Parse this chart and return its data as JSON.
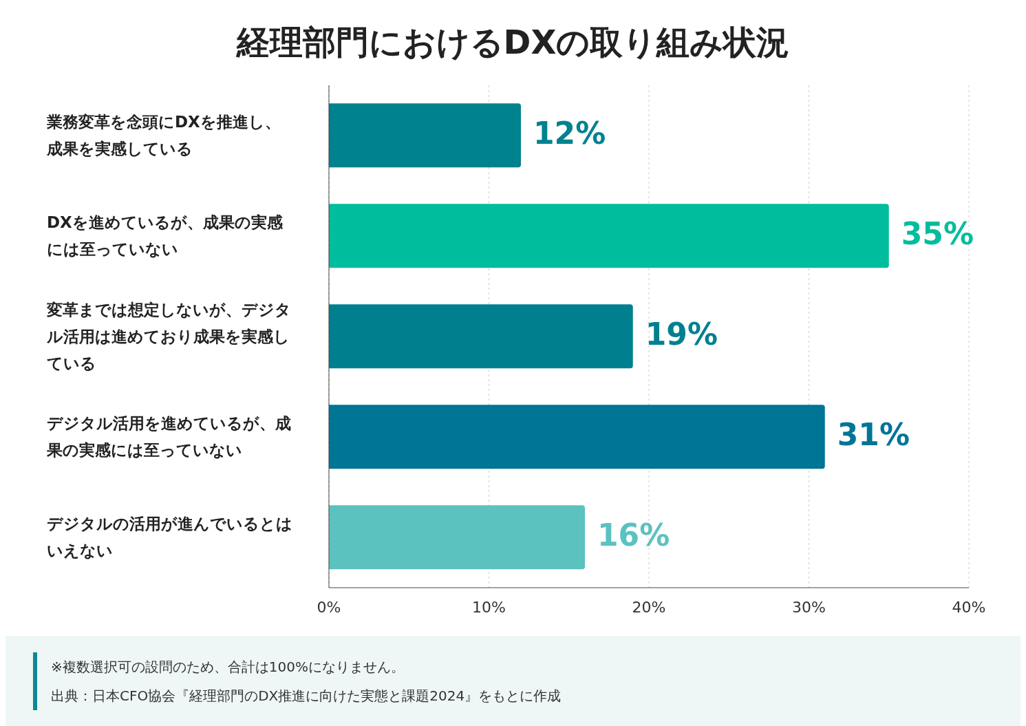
{
  "chart_data": {
    "type": "bar",
    "orientation": "horizontal",
    "title": "経理部門におけるDXの取り組み状況",
    "categories": [
      "業務変革を念頭にDXを推進し、成果を実感している",
      "DXを進めているが、成果の実感には至っていない",
      "変革までは想定しないが、デジタル活用は進めており成果を実感している",
      "デジタル活用を進めているが、成果の実感には至っていない",
      "デジタルの活用が進んでいるとはいえない"
    ],
    "values": [
      12,
      35,
      19,
      31,
      16
    ],
    "colors": [
      "#00828f",
      "#00bd9d",
      "#00808f",
      "#007596",
      "#5bc2c0"
    ],
    "value_labels": [
      "12%",
      "35%",
      "19%",
      "31%",
      "16%"
    ],
    "xlim": [
      0,
      40
    ],
    "xticks": [
      {
        "value": 0,
        "label": "0%"
      },
      {
        "value": 10,
        "label": "10%"
      },
      {
        "value": 20,
        "label": "20%"
      },
      {
        "value": 30,
        "label": "30%"
      },
      {
        "value": 40,
        "label": "40%"
      }
    ],
    "grid": "x",
    "annotations": [
      "※複数選択可の設問のため、合計は100%になりません。",
      "出典：日本CFO協会『経理部門のDX推進に向けた実態と課題2024』をもとに作成"
    ]
  }
}
